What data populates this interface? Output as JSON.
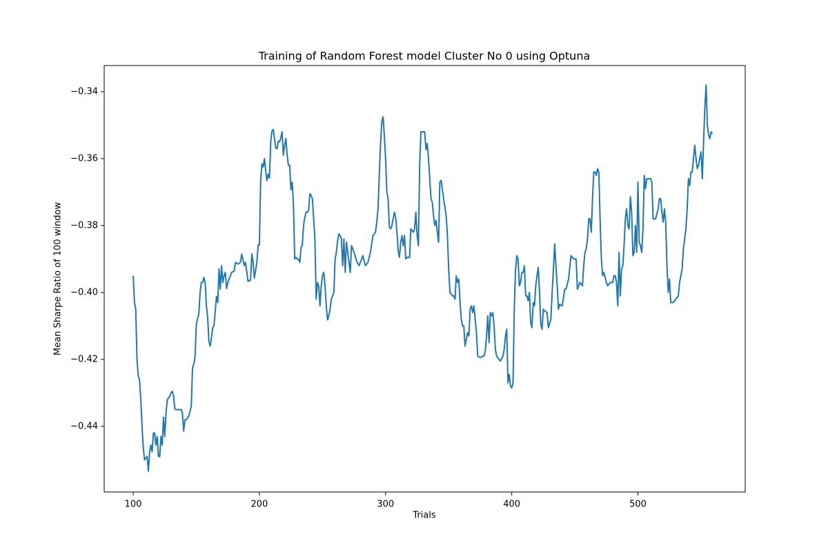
{
  "chart_data": {
    "type": "line",
    "title": "Training of Random Forest model Cluster No 0 using Optuna",
    "x_label": "Trials",
    "y_label": "Mean Sharpe Ratio of 100 window",
    "color": "#1f77b4",
    "xlim": [
      77,
      585
    ],
    "ylim": [
      -0.4596,
      -0.3322
    ],
    "xticks": [
      100,
      200,
      300,
      400,
      500
    ],
    "yticks": [
      {
        "value": -0.44,
        "label": "−0.44"
      },
      {
        "value": -0.42,
        "label": "−0.42"
      },
      {
        "value": -0.4,
        "label": "−0.40"
      },
      {
        "value": -0.38,
        "label": "−0.38"
      },
      {
        "value": -0.36,
        "label": "−0.36"
      },
      {
        "value": -0.34,
        "label": "−0.34"
      }
    ],
    "x": [
      100,
      101,
      102,
      103,
      104,
      105,
      106,
      107,
      108,
      109,
      110,
      111,
      112,
      113,
      114,
      115,
      116,
      117,
      118,
      119,
      120,
      121,
      122,
      123,
      124,
      125,
      126,
      127,
      128,
      129,
      130,
      131,
      132,
      133,
      134,
      136,
      138,
      139,
      140,
      141,
      142,
      144,
      146,
      147,
      148,
      149,
      150,
      152,
      153,
      154,
      155,
      156,
      157,
      158,
      159,
      160,
      161,
      162,
      163,
      164,
      166,
      167,
      168,
      169,
      170,
      171,
      172,
      173,
      174,
      175,
      178,
      180,
      181,
      183,
      185,
      186,
      188,
      189,
      191,
      193,
      194,
      195,
      196,
      198,
      199,
      200,
      201,
      202,
      203,
      204,
      205,
      206,
      207,
      208,
      209,
      210,
      211,
      212,
      213,
      214,
      215,
      216,
      217,
      218,
      219,
      220,
      221,
      222,
      223,
      224,
      225,
      226,
      227,
      228,
      229,
      230,
      231,
      232,
      233,
      234,
      235,
      236,
      237,
      238,
      239,
      240,
      241,
      242,
      243,
      244,
      245,
      246,
      247,
      248,
      249,
      250,
      251,
      252,
      253,
      254,
      255,
      256,
      257,
      258,
      259,
      260,
      261,
      262,
      263,
      264,
      265,
      266,
      267,
      268,
      269,
      270,
      271,
      272,
      273,
      274,
      275,
      277,
      279,
      281,
      282,
      284,
      286,
      288,
      290,
      292,
      293,
      294,
      295,
      296,
      297,
      298,
      299,
      300,
      301,
      302,
      303,
      304,
      305,
      306,
      307,
      308,
      309,
      310,
      311,
      312,
      313,
      314,
      315,
      316,
      317,
      319,
      320,
      322,
      323,
      324,
      325,
      326,
      327,
      328,
      330,
      331,
      332,
      333,
      334,
      335,
      336,
      337,
      338,
      339,
      340,
      341,
      342,
      343,
      344,
      346,
      348,
      349,
      350,
      351,
      353,
      354,
      355,
      356,
      357,
      358,
      359,
      360,
      361,
      362,
      363,
      364,
      365,
      366,
      367,
      368,
      369,
      370,
      371,
      372,
      373,
      375,
      377,
      378,
      379,
      380,
      381,
      382,
      383,
      384,
      385,
      386,
      387,
      388,
      389,
      391,
      393,
      394,
      395,
      396,
      397,
      398,
      399,
      400,
      401,
      402,
      403,
      404,
      405,
      406,
      407,
      408,
      409,
      410,
      411,
      412,
      413,
      414,
      415,
      416,
      417,
      418,
      419,
      420,
      421,
      422,
      423,
      424,
      425,
      426,
      428,
      429,
      431,
      432,
      433,
      434,
      435,
      436,
      437,
      438,
      440,
      442,
      443,
      445,
      447,
      449,
      451,
      452,
      454,
      456,
      457,
      458,
      459,
      460,
      461,
      462,
      463,
      464,
      465,
      466,
      467,
      468,
      469,
      470,
      471,
      472,
      473,
      475,
      476,
      478,
      480,
      481,
      482,
      483,
      484,
      485,
      486,
      487,
      488,
      489,
      490,
      491,
      492,
      493,
      494,
      495,
      496,
      497,
      498,
      499,
      500,
      501,
      502,
      503,
      504,
      505,
      506,
      507,
      508,
      510,
      511,
      512,
      514,
      516,
      517,
      518,
      519,
      520,
      521,
      522,
      523,
      524,
      525,
      526,
      528,
      530,
      532,
      533,
      535,
      536,
      538,
      539,
      540,
      541,
      542,
      543,
      544,
      545,
      546,
      547,
      548,
      549,
      550,
      551,
      552,
      553,
      554,
      555,
      556,
      557,
      558,
      559
    ],
    "values": [
      -0.395,
      -0.403,
      -0.405,
      -0.42,
      -0.425,
      -0.426,
      -0.432,
      -0.44,
      -0.4466,
      -0.45,
      -0.4495,
      -0.449,
      -0.4534,
      -0.4476,
      -0.4456,
      -0.4476,
      -0.442,
      -0.442,
      -0.4456,
      -0.443,
      -0.449,
      -0.449,
      -0.443,
      -0.4456,
      -0.4373,
      -0.443,
      -0.436,
      -0.432,
      -0.4315,
      -0.431,
      -0.43,
      -0.4295,
      -0.431,
      -0.4348,
      -0.435,
      -0.435,
      -0.435,
      -0.436,
      -0.4414,
      -0.438,
      -0.438,
      -0.437,
      -0.434,
      -0.4225,
      -0.4214,
      -0.4194,
      -0.4095,
      -0.4064,
      -0.4,
      -0.397,
      -0.397,
      -0.3955,
      -0.397,
      -0.404,
      -0.4074,
      -0.4146,
      -0.416,
      -0.4136,
      -0.4105,
      -0.41,
      -0.4012,
      -0.403,
      -0.393,
      -0.399,
      -0.392,
      -0.397,
      -0.395,
      -0.394,
      -0.3988,
      -0.397,
      -0.394,
      -0.3936,
      -0.391,
      -0.3915,
      -0.391,
      -0.3885,
      -0.392,
      -0.391,
      -0.3967,
      -0.3963,
      -0.3885,
      -0.391,
      -0.3957,
      -0.391,
      -0.3858,
      -0.3858,
      -0.3666,
      -0.3616,
      -0.3625,
      -0.36,
      -0.3637,
      -0.3666,
      -0.3646,
      -0.3658,
      -0.3548,
      -0.3517,
      -0.3513,
      -0.3542,
      -0.3569,
      -0.357,
      -0.3548,
      -0.355,
      -0.3538,
      -0.352,
      -0.359,
      -0.3559,
      -0.354,
      -0.359,
      -0.362,
      -0.362,
      -0.3693,
      -0.367,
      -0.374,
      -0.39,
      -0.3895,
      -0.39,
      -0.39,
      -0.391,
      -0.3865,
      -0.386,
      -0.38,
      -0.3775,
      -0.376,
      -0.376,
      -0.3755,
      -0.3705,
      -0.371,
      -0.372,
      -0.378,
      -0.384,
      -0.402,
      -0.397,
      -0.398,
      -0.404,
      -0.398,
      -0.395,
      -0.394,
      -0.398,
      -0.404,
      -0.4082,
      -0.407,
      -0.405,
      -0.402,
      -0.401,
      -0.4,
      -0.39,
      -0.388,
      -0.3845,
      -0.3825,
      -0.383,
      -0.384,
      -0.392,
      -0.384,
      -0.394,
      -0.385,
      -0.388,
      -0.391,
      -0.394,
      -0.386,
      -0.387,
      -0.388,
      -0.3906,
      -0.392,
      -0.39,
      -0.389,
      -0.392,
      -0.391,
      -0.388,
      -0.383,
      -0.382,
      -0.379,
      -0.375,
      -0.365,
      -0.3555,
      -0.349,
      -0.3475,
      -0.353,
      -0.36,
      -0.37,
      -0.372,
      -0.3805,
      -0.381,
      -0.38,
      -0.378,
      -0.376,
      -0.3775,
      -0.382,
      -0.3876,
      -0.3895,
      -0.385,
      -0.383,
      -0.386,
      -0.383,
      -0.39,
      -0.3895,
      -0.3895,
      -0.381,
      -0.382,
      -0.381,
      -0.376,
      -0.383,
      -0.386,
      -0.362,
      -0.352,
      -0.352,
      -0.352,
      -0.3573,
      -0.3555,
      -0.36,
      -0.366,
      -0.372,
      -0.373,
      -0.377,
      -0.38,
      -0.3785,
      -0.382,
      -0.385,
      -0.367,
      -0.3665,
      -0.372,
      -0.377,
      -0.383,
      -0.393,
      -0.4,
      -0.401,
      -0.401,
      -0.402,
      -0.395,
      -0.397,
      -0.396,
      -0.403,
      -0.408,
      -0.41,
      -0.41,
      -0.416,
      -0.414,
      -0.412,
      -0.413,
      -0.405,
      -0.404,
      -0.406,
      -0.404,
      -0.408,
      -0.412,
      -0.419,
      -0.4195,
      -0.419,
      -0.419,
      -0.4175,
      -0.413,
      -0.407,
      -0.415,
      -0.406,
      -0.407,
      -0.406,
      -0.41,
      -0.417,
      -0.419,
      -0.4195,
      -0.4205,
      -0.419,
      -0.417,
      -0.413,
      -0.411,
      -0.427,
      -0.4245,
      -0.428,
      -0.4285,
      -0.427,
      -0.405,
      -0.393,
      -0.389,
      -0.39,
      -0.398,
      -0.397,
      -0.394,
      -0.394,
      -0.392,
      -0.401,
      -0.401,
      -0.4025,
      -0.4,
      -0.409,
      -0.4105,
      -0.403,
      -0.404,
      -0.398,
      -0.395,
      -0.3925,
      -0.4,
      -0.4095,
      -0.411,
      -0.405,
      -0.4055,
      -0.406,
      -0.4105,
      -0.408,
      -0.4,
      -0.393,
      -0.3855,
      -0.392,
      -0.398,
      -0.405,
      -0.4035,
      -0.404,
      -0.399,
      -0.399,
      -0.396,
      -0.389,
      -0.39,
      -0.39,
      -0.399,
      -0.397,
      -0.398,
      -0.392,
      -0.388,
      -0.387,
      -0.384,
      -0.378,
      -0.378,
      -0.382,
      -0.372,
      -0.364,
      -0.364,
      -0.365,
      -0.363,
      -0.364,
      -0.378,
      -0.39,
      -0.395,
      -0.394,
      -0.397,
      -0.398,
      -0.397,
      -0.397,
      -0.395,
      -0.395,
      -0.397,
      -0.404,
      -0.388,
      -0.401,
      -0.393,
      -0.392,
      -0.386,
      -0.378,
      -0.375,
      -0.38,
      -0.381,
      -0.3714,
      -0.376,
      -0.389,
      -0.388,
      -0.38,
      -0.388,
      -0.367,
      -0.385,
      -0.386,
      -0.388,
      -0.381,
      -0.365,
      -0.369,
      -0.366,
      -0.366,
      -0.366,
      -0.367,
      -0.378,
      -0.378,
      -0.375,
      -0.372,
      -0.372,
      -0.376,
      -0.379,
      -0.375,
      -0.379,
      -0.392,
      -0.4,
      -0.396,
      -0.403,
      -0.403,
      -0.402,
      -0.401,
      -0.397,
      -0.393,
      -0.387,
      -0.381,
      -0.375,
      -0.366,
      -0.368,
      -0.364,
      -0.364,
      -0.36,
      -0.356,
      -0.36,
      -0.363,
      -0.362,
      -0.36,
      -0.358,
      -0.366,
      -0.355,
      -0.345,
      -0.338,
      -0.35,
      -0.353,
      -0.354,
      -0.352,
      -0.3525
    ]
  }
}
